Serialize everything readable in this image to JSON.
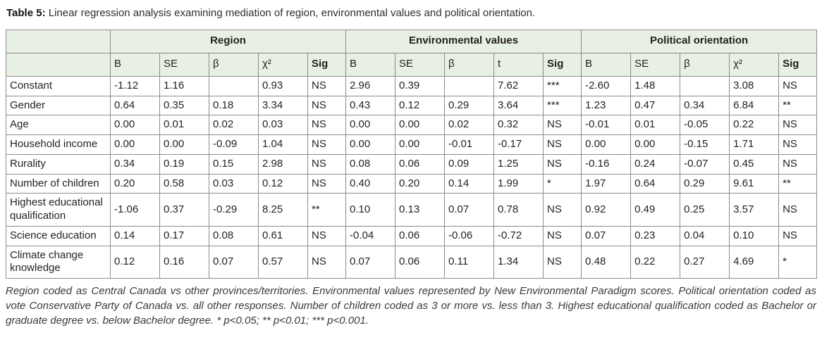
{
  "caption": {
    "label": "Table 5:",
    "text": " Linear regression analysis examining mediation of region, environmental values and political orientation."
  },
  "table": {
    "groups": [
      {
        "key": "region",
        "label": "Region",
        "columns": [
          "B",
          "SE",
          "β",
          "χ²",
          "Sig"
        ]
      },
      {
        "key": "env",
        "label": "Environmental values",
        "columns": [
          "B",
          "SE",
          "β",
          "t",
          "Sig"
        ]
      },
      {
        "key": "pol",
        "label": "Political orientation",
        "columns": [
          "B",
          "SE",
          "β",
          "χ²",
          "Sig"
        ]
      }
    ],
    "rows": [
      {
        "label": "Constant",
        "region": [
          "-1.12",
          "1.16",
          "",
          "0.93",
          "NS"
        ],
        "env": [
          "2.96",
          "0.39",
          "",
          "7.62",
          "***"
        ],
        "pol": [
          "-2.60",
          "1.48",
          "",
          "3.08",
          "NS"
        ]
      },
      {
        "label": "Gender",
        "region": [
          "0.64",
          "0.35",
          "0.18",
          "3.34",
          "NS"
        ],
        "env": [
          "0.43",
          "0.12",
          "0.29",
          "3.64",
          "***"
        ],
        "pol": [
          "1.23",
          "0.47",
          "0.34",
          "6.84",
          "**"
        ]
      },
      {
        "label": "Age",
        "region": [
          "0.00",
          "0.01",
          "0.02",
          "0.03",
          "NS"
        ],
        "env": [
          "0.00",
          "0.00",
          "0.02",
          "0.32",
          "NS"
        ],
        "pol": [
          "-0.01",
          "0.01",
          "-0.05",
          "0.22",
          "NS"
        ]
      },
      {
        "label": "Household income",
        "region": [
          "0.00",
          "0.00",
          "-0.09",
          "1.04",
          "NS"
        ],
        "env": [
          "0.00",
          "0.00",
          "-0.01",
          "-0.17",
          "NS"
        ],
        "pol": [
          "0.00",
          "0.00",
          "-0.15",
          "1.71",
          "NS"
        ]
      },
      {
        "label": "Rurality",
        "region": [
          "0.34",
          "0.19",
          "0.15",
          "2.98",
          "NS"
        ],
        "env": [
          "0.08",
          "0.06",
          "0.09",
          "1.25",
          "NS"
        ],
        "pol": [
          "-0.16",
          "0.24",
          "-0.07",
          "0.45",
          "NS"
        ]
      },
      {
        "label": "Number of children",
        "region": [
          "0.20",
          "0.58",
          "0.03",
          "0.12",
          "NS"
        ],
        "env": [
          "0.40",
          "0.20",
          "0.14",
          "1.99",
          "*"
        ],
        "pol": [
          "1.97",
          "0.64",
          "0.29",
          "9.61",
          "**"
        ]
      },
      {
        "label": "Highest educational qualification",
        "region": [
          "-1.06",
          "0.37",
          "-0.29",
          "8.25",
          "**"
        ],
        "env": [
          "0.10",
          "0.13",
          "0.07",
          "0.78",
          "NS"
        ],
        "pol": [
          "0.92",
          "0.49",
          "0.25",
          "3.57",
          "NS"
        ]
      },
      {
        "label": "Science education",
        "region": [
          "0.14",
          "0.17",
          "0.08",
          "0.61",
          "NS"
        ],
        "env": [
          "-0.04",
          "0.06",
          "-0.06",
          "-0.72",
          "NS"
        ],
        "pol": [
          "0.07",
          "0.23",
          "0.04",
          "0.10",
          "NS"
        ]
      },
      {
        "label": "Climate change knowledge",
        "region": [
          "0.12",
          "0.16",
          "0.07",
          "0.57",
          "NS"
        ],
        "env": [
          "0.07",
          "0.06",
          "0.11",
          "1.34",
          "NS"
        ],
        "pol": [
          "0.48",
          "0.22",
          "0.27",
          "4.69",
          "*"
        ]
      }
    ]
  },
  "footnote": "Region coded as Central Canada vs other provinces/territories. Environmental values represented by New Environmental Paradigm scores. Political orientation coded as vote Conservative Party of Canada vs. all other responses. Number of children coded as 3 or more vs. less than 3. Highest educational qualification coded as Bachelor or graduate degree vs. below Bachelor degree. * p<0.05; ** p<0.01; *** p<0.001.",
  "colors": {
    "header_bg": "#e8efe3",
    "border": "#8c8c8c",
    "text": "#231f20"
  }
}
